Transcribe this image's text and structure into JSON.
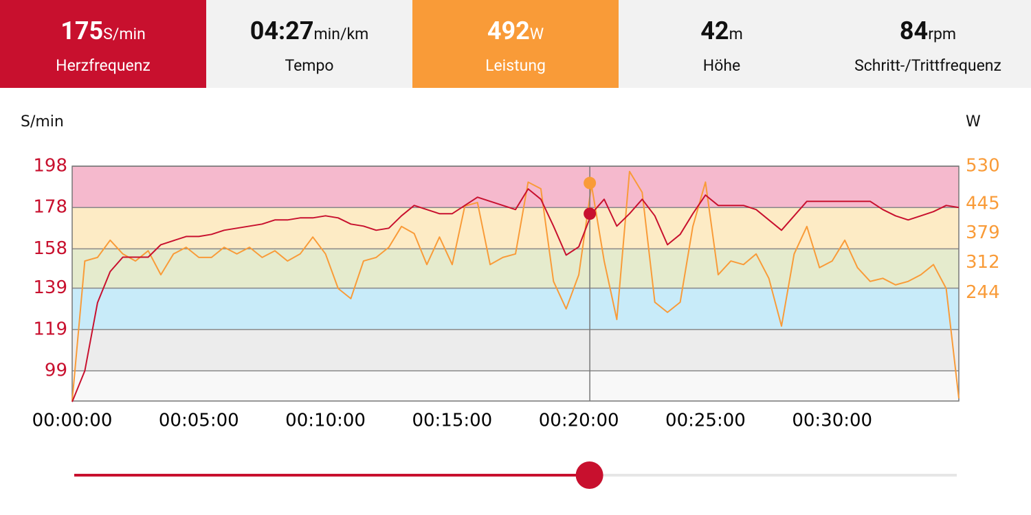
{
  "metrics": [
    {
      "value": 175,
      "unit": "S/min",
      "label": "Herzfrequenz",
      "color": "#c8102e"
    },
    {
      "value": "04:27",
      "unit": "min/km",
      "label": "Tempo"
    },
    {
      "value": 492,
      "unit": "W",
      "label": "Leistung",
      "color": "#f99b38"
    },
    {
      "value": 42,
      "unit": "m",
      "label": "Höhe"
    },
    {
      "value": 84,
      "unit": "rpm",
      "label": "Schritt-/Trittfrequenz"
    }
  ],
  "chart_data": {
    "type": "line",
    "ylabel": "S/min",
    "y2label": "W",
    "x": [
      0,
      30,
      60,
      90,
      120,
      150,
      180,
      210,
      240,
      270,
      300,
      330,
      360,
      390,
      420,
      450,
      480,
      510,
      540,
      570,
      600,
      630,
      660,
      690,
      720,
      750,
      780,
      810,
      840,
      870,
      900,
      930,
      960,
      990,
      1020,
      1050,
      1080,
      1110,
      1140,
      1170,
      1200,
      1230,
      1260,
      1290,
      1320,
      1350,
      1380,
      1410,
      1440,
      1470,
      1500,
      1530,
      1560,
      1590,
      1620,
      1650,
      1680,
      1710,
      1740,
      1770,
      1800,
      1830,
      1860,
      1890,
      1920,
      1950,
      1980,
      2010,
      2040,
      2070,
      2100
    ],
    "series": [
      {
        "color": "#c8102e",
        "values": [
          84,
          99,
          132,
          147,
          154,
          154,
          154,
          160,
          162,
          164,
          164,
          165,
          167,
          168,
          169,
          170,
          172,
          172,
          173,
          173,
          174,
          173,
          170,
          169,
          167,
          168,
          174,
          179,
          177,
          175,
          175,
          179,
          183,
          181,
          179,
          177,
          187,
          182,
          169,
          155,
          159,
          175,
          182,
          169,
          175,
          182,
          174,
          160,
          165,
          175,
          184,
          179,
          179,
          179,
          177,
          172,
          167,
          174,
          181,
          181,
          181,
          181,
          181,
          181,
          177,
          174,
          172,
          174,
          176,
          179,
          178
        ]
      },
      {
        "color": "#f99b38",
        "axis": "y2",
        "values": [
          0,
          316,
          324,
          363,
          332,
          316,
          339,
          285,
          332,
          347,
          324,
          324,
          347,
          332,
          347,
          324,
          339,
          316,
          332,
          370,
          332,
          254,
          231,
          316,
          324,
          347,
          394,
          378,
          308,
          370,
          308,
          440,
          448,
          308,
          324,
          332,
          494,
          479,
          270,
          208,
          285,
          487,
          316,
          184,
          518,
          471,
          223,
          200,
          223,
          394,
          494,
          285,
          316,
          308,
          332,
          277,
          169,
          332,
          394,
          301,
          316,
          363,
          301,
          270,
          277,
          262,
          270,
          285,
          308,
          254,
          6
        ]
      }
    ],
    "xlim": [
      0,
      2100
    ],
    "xticks": [
      {
        "value": 0,
        "label": "00:00:00"
      },
      {
        "value": 300,
        "label": "00:05:00"
      },
      {
        "value": 600,
        "label": "00:10:00"
      },
      {
        "value": 900,
        "label": "00:15:00"
      },
      {
        "value": 1200,
        "label": "00:20:00"
      },
      {
        "value": 1500,
        "label": "00:25:00"
      },
      {
        "value": 1800,
        "label": "00:30:00"
      }
    ],
    "ylim": [
      84.4,
      198
    ],
    "yticks": [
      198,
      178,
      158,
      139,
      119,
      99
    ],
    "y2lim": [
      0,
      530
    ],
    "y2ticks": [
      530,
      445,
      379,
      312,
      244
    ],
    "zone_colors": [
      "#f5b9cd",
      "#fdebc5",
      "#e5ebcd",
      "#c8ebf9",
      "#ececec",
      "#f8f8f8"
    ],
    "cursor_x": 1226
  }
}
